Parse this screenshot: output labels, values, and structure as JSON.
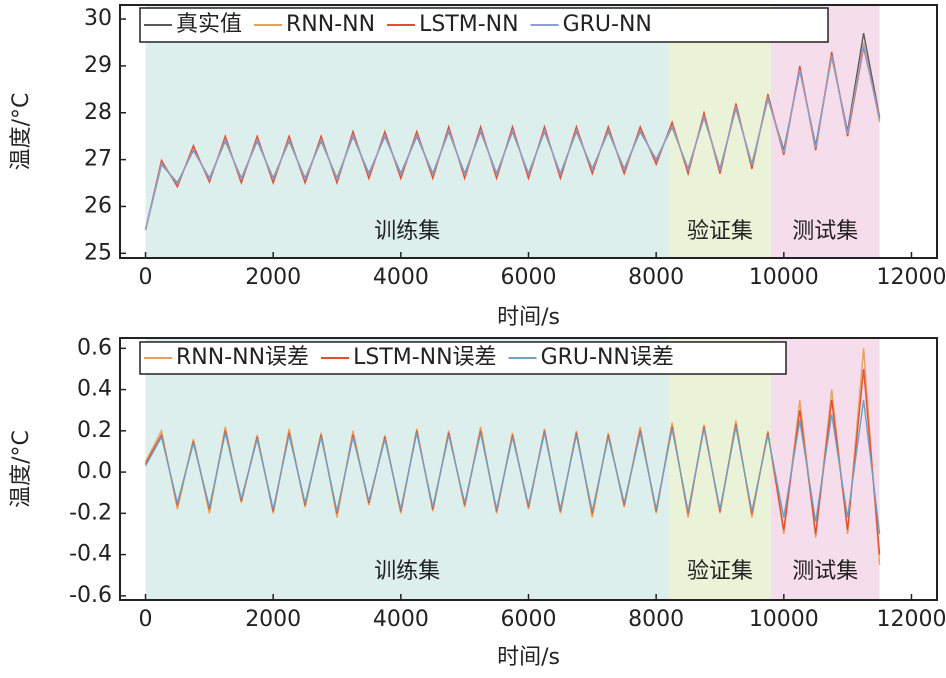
{
  "chart_data": [
    {
      "type": "line",
      "xlabel": "时间/s",
      "ylabel": "温度/°C",
      "xlim": [
        -400,
        12400
      ],
      "xticks": [
        0,
        2000,
        4000,
        6000,
        8000,
        10000,
        12000
      ],
      "ylim": [
        24.9,
        30.3
      ],
      "yticks": [
        25,
        26,
        27,
        28,
        29,
        30
      ],
      "regions": [
        {
          "label": "训练集",
          "start": 0,
          "end": 8200,
          "color": "#dcefec"
        },
        {
          "label": "验证集",
          "start": 8200,
          "end": 9800,
          "color": "#eaf3d8"
        },
        {
          "label": "测试集",
          "start": 9800,
          "end": 11500,
          "color": "#f5ddeb"
        }
      ],
      "x": [
        0,
        250,
        500,
        750,
        1000,
        1250,
        1500,
        1750,
        2000,
        2250,
        2500,
        2750,
        3000,
        3250,
        3500,
        3750,
        4000,
        4250,
        4500,
        4750,
        5000,
        5250,
        5500,
        5750,
        6000,
        6250,
        6500,
        6750,
        7000,
        7250,
        7500,
        7750,
        8000,
        8250,
        8500,
        8750,
        9000,
        9250,
        9500,
        9750,
        10000,
        10250,
        10500,
        10750,
        11000,
        11250,
        11500
      ],
      "series": [
        {
          "name": "真实值",
          "color": "#5a5a5a",
          "values": [
            25.5,
            26.9,
            26.5,
            27.2,
            26.6,
            27.4,
            26.6,
            27.4,
            26.6,
            27.4,
            26.6,
            27.4,
            26.6,
            27.5,
            26.7,
            27.5,
            26.7,
            27.5,
            26.7,
            27.6,
            26.7,
            27.6,
            26.7,
            27.6,
            26.7,
            27.6,
            26.7,
            27.6,
            26.8,
            27.6,
            26.8,
            27.6,
            27.0,
            27.7,
            26.8,
            27.9,
            26.8,
            28.1,
            26.9,
            28.3,
            27.2,
            28.9,
            27.3,
            29.2,
            27.6,
            29.7,
            27.9
          ]
        },
        {
          "name": "RNN-NN",
          "color": "#e8a060",
          "values": [
            25.5,
            26.95,
            26.45,
            27.25,
            26.55,
            27.45,
            26.55,
            27.45,
            26.55,
            27.45,
            26.55,
            27.45,
            26.55,
            27.55,
            26.65,
            27.55,
            26.65,
            27.55,
            26.65,
            27.65,
            26.65,
            27.65,
            26.65,
            27.65,
            26.65,
            27.65,
            26.65,
            27.65,
            26.75,
            27.65,
            26.75,
            27.65,
            26.95,
            27.75,
            26.75,
            27.95,
            26.75,
            28.15,
            26.85,
            28.35,
            27.1,
            28.95,
            27.2,
            29.25,
            27.5,
            29.5,
            27.8
          ]
        },
        {
          "name": "LSTM-NN",
          "color": "#e05030",
          "values": [
            25.5,
            26.98,
            26.42,
            27.3,
            26.52,
            27.5,
            26.5,
            27.5,
            26.5,
            27.5,
            26.5,
            27.5,
            26.5,
            27.6,
            26.6,
            27.6,
            26.6,
            27.6,
            26.6,
            27.7,
            26.6,
            27.7,
            26.6,
            27.7,
            26.6,
            27.7,
            26.6,
            27.7,
            26.7,
            27.7,
            26.7,
            27.7,
            26.9,
            27.8,
            26.7,
            28.0,
            26.7,
            28.2,
            26.8,
            28.4,
            27.1,
            29.0,
            27.2,
            29.3,
            27.5,
            29.4,
            27.9
          ]
        },
        {
          "name": "GRU-NN",
          "color": "#8ea0d0",
          "values": [
            25.5,
            26.92,
            26.48,
            27.22,
            26.58,
            27.42,
            26.58,
            27.42,
            26.58,
            27.42,
            26.58,
            27.42,
            26.58,
            27.52,
            26.68,
            27.52,
            26.68,
            27.52,
            26.68,
            27.62,
            26.68,
            27.62,
            26.68,
            27.62,
            26.68,
            27.62,
            26.68,
            27.62,
            26.78,
            27.62,
            26.78,
            27.62,
            26.98,
            27.72,
            26.78,
            27.92,
            26.78,
            28.12,
            26.88,
            28.32,
            27.15,
            28.92,
            27.25,
            29.22,
            27.55,
            29.45,
            27.85
          ]
        }
      ]
    },
    {
      "type": "line",
      "xlabel": "时间/s",
      "ylabel": "温度/°C",
      "xlim": [
        -400,
        12400
      ],
      "xticks": [
        0,
        2000,
        4000,
        6000,
        8000,
        10000,
        12000
      ],
      "ylim": [
        -0.62,
        0.65
      ],
      "yticks": [
        -0.6,
        -0.4,
        -0.2,
        {
          "value": 0,
          "label": "0.0"
        },
        0.2,
        0.4,
        0.6
      ],
      "regions": [
        {
          "label": "训练集",
          "start": 0,
          "end": 8200,
          "color": "#dcefec"
        },
        {
          "label": "验证集",
          "start": 8200,
          "end": 9800,
          "color": "#eaf3d8"
        },
        {
          "label": "测试集",
          "start": 9800,
          "end": 11500,
          "color": "#f5ddeb"
        }
      ],
      "x": [
        0,
        250,
        500,
        750,
        1000,
        1250,
        1500,
        1750,
        2000,
        2250,
        2500,
        2750,
        3000,
        3250,
        3500,
        3750,
        4000,
        4250,
        4500,
        4750,
        5000,
        5250,
        5500,
        5750,
        6000,
        6250,
        6500,
        6750,
        7000,
        7250,
        7500,
        7750,
        8000,
        8250,
        8500,
        8750,
        9000,
        9250,
        9500,
        9750,
        10000,
        10250,
        10500,
        10750,
        11000,
        11250,
        11500
      ],
      "series": [
        {
          "name": "RNN-NN误差",
          "color": "#e8a060",
          "values": [
            0.05,
            0.2,
            -0.18,
            0.16,
            -0.2,
            0.22,
            -0.15,
            0.18,
            -0.2,
            0.21,
            -0.17,
            0.19,
            -0.22,
            0.2,
            -0.16,
            0.18,
            -0.2,
            0.21,
            -0.19,
            0.2,
            -0.17,
            0.22,
            -0.2,
            0.19,
            -0.18,
            0.21,
            -0.2,
            0.2,
            -0.22,
            0.19,
            -0.17,
            0.22,
            -0.2,
            0.24,
            -0.22,
            0.23,
            -0.2,
            0.25,
            -0.22,
            0.2,
            -0.3,
            0.35,
            -0.32,
            0.4,
            -0.3,
            0.6,
            -0.45
          ]
        },
        {
          "name": "LSTM-NN误差",
          "color": "#e05030",
          "values": [
            0.04,
            0.18,
            -0.16,
            0.15,
            -0.18,
            0.2,
            -0.14,
            0.17,
            -0.19,
            0.19,
            -0.16,
            0.18,
            -0.2,
            0.18,
            -0.15,
            0.17,
            -0.19,
            0.2,
            -0.18,
            0.19,
            -0.16,
            0.2,
            -0.19,
            0.18,
            -0.17,
            0.2,
            -0.19,
            0.19,
            -0.2,
            0.18,
            -0.16,
            0.2,
            -0.19,
            0.22,
            -0.2,
            0.22,
            -0.19,
            0.23,
            -0.2,
            0.19,
            -0.28,
            0.3,
            -0.3,
            0.35,
            -0.28,
            0.5,
            -0.4
          ]
        },
        {
          "name": "GRU-NN误差",
          "color": "#6f9fc4",
          "values": [
            0.03,
            0.17,
            -0.15,
            0.14,
            -0.17,
            0.19,
            -0.13,
            0.16,
            -0.18,
            0.18,
            -0.15,
            0.17,
            -0.19,
            0.17,
            -0.14,
            0.16,
            -0.18,
            0.19,
            -0.17,
            0.18,
            -0.15,
            0.19,
            -0.18,
            0.17,
            -0.16,
            0.19,
            -0.18,
            0.18,
            -0.19,
            0.17,
            -0.15,
            0.19,
            -0.18,
            0.21,
            -0.19,
            0.21,
            -0.18,
            0.22,
            -0.19,
            0.18,
            -0.22,
            0.25,
            -0.24,
            0.28,
            -0.22,
            0.35,
            -0.3
          ]
        }
      ]
    }
  ]
}
